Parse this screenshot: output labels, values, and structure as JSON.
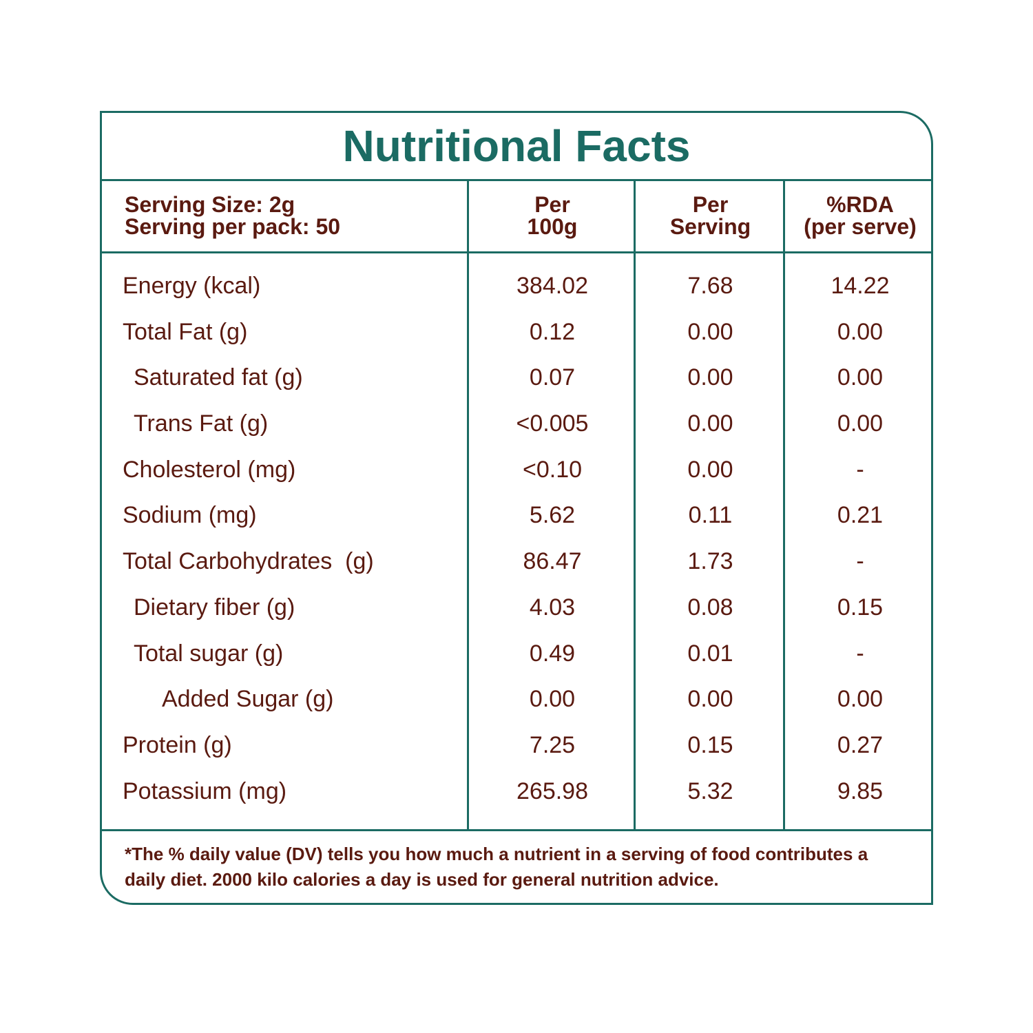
{
  "title": "Nutritional Facts",
  "header": {
    "serving_size": "Serving Size: 2g",
    "serving_per_pack": "Serving per pack: 50",
    "col_per100_line1": "Per",
    "col_per100_line2": "100g",
    "col_perserving_line1": "Per",
    "col_perserving_line2": "Serving",
    "col_rda_line1": "%RDA",
    "col_rda_line2": "(per serve)"
  },
  "rows": [
    {
      "name": "Energy (kcal)",
      "per100": "384.02",
      "perserving": "7.68",
      "rda": "14.22"
    },
    {
      "name": "Total Fat (g)",
      "per100": "0.12",
      "perserving": "0.00",
      "rda": "0.00"
    },
    {
      "name": "Saturated fat (g)",
      "per100": "0.07",
      "perserving": "0.00",
      "rda": "0.00"
    },
    {
      "name": "Trans Fat (g)",
      "per100": "<0.005",
      "perserving": "0.00",
      "rda": "0.00"
    },
    {
      "name": "Cholesterol (mg)",
      "per100": "<0.10",
      "perserving": "0.00",
      "rda": "-"
    },
    {
      "name": "Sodium (mg)",
      "per100": "5.62",
      "perserving": "0.11",
      "rda": "0.21"
    },
    {
      "name": "Total Carbohydrates  (g)",
      "per100": "86.47",
      "perserving": "1.73",
      "rda": "-"
    },
    {
      "name": "Dietary fiber (g)",
      "per100": "4.03",
      "perserving": "0.08",
      "rda": "0.15"
    },
    {
      "name": "Total sugar (g)",
      "per100": "0.49",
      "perserving": "0.01",
      "rda": "-"
    },
    {
      "name": "Added Sugar (g)",
      "per100": "0.00",
      "perserving": "0.00",
      "rda": "0.00"
    },
    {
      "name": "Protein (g)",
      "per100": "7.25",
      "perserving": "0.15",
      "rda": "0.27"
    },
    {
      "name": "Potassium (mg)",
      "per100": "265.98",
      "perserving": "5.32",
      "rda": "9.85"
    }
  ],
  "footnote": "*The % daily value (DV) tells you how much a nutrient in a serving of food contributes a daily diet. 2000 kilo calories a day is used for general nutrition advice.",
  "colors": {
    "border": "#1b6b63",
    "title": "#1b6b63",
    "text": "#5a1a10"
  }
}
